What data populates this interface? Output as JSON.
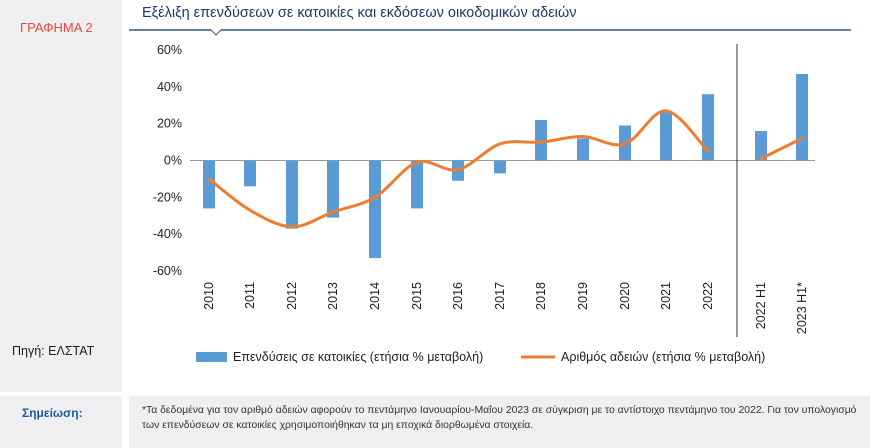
{
  "sidebar": {
    "graph_label": "ΓΡΑΦΗΜΑ 2",
    "source": "Πηγή: ΕΛΣΤΑΤ"
  },
  "note": {
    "label": "Σημείωση:",
    "text": "*Τα δεδομένα για τον αριθμό αδειών αφορούν το πεντάμηνο Ιανουαρίου-Μαΐου 2023 σε σύγκριση με το αντίστοιχο πεντάμηνο του 2022. Για τον υπολογισμό των επενδύσεων σε κατοικίες χρησιμοποιήθηκαν τα μη εποχικά διορθωμένα στοιχεία."
  },
  "colors": {
    "bar": "#5b9bd5",
    "line": "#ed7d31",
    "accent_red": "#e8483d",
    "title_blue": "#1c3a66"
  },
  "chart_data": {
    "type": "bar",
    "title": "Εξέλιξη επενδύσεων σε κατοικίες και εκδόσεων οικοδομικών αδειών",
    "categories": [
      "2010",
      "2011",
      "2012",
      "2013",
      "2014",
      "2015",
      "2016",
      "2017",
      "2018",
      "2019",
      "2020",
      "2021",
      "2022",
      "2022 H1",
      "2023 H1*"
    ],
    "ylim": [
      -60,
      60
    ],
    "yticks": [
      "60%",
      "40%",
      "20%",
      "0%",
      "-20%",
      "-40%",
      "-60%"
    ],
    "ytick_values": [
      60,
      40,
      20,
      0,
      -20,
      -40,
      -60
    ],
    "series": [
      {
        "name": "Επενδύσεις σε κατοικίες (ετήσια % μεταβολή)",
        "kind": "bar",
        "values": [
          -26,
          -14,
          -37,
          -31,
          -53,
          -26,
          -11,
          -7,
          22,
          12,
          19,
          27,
          36,
          16,
          47
        ]
      },
      {
        "name": "Αριθμός αδειών (ετήσια % μεταβολή)",
        "kind": "line",
        "values": [
          -10,
          -27,
          -36,
          -28,
          -20,
          -1,
          -5,
          9,
          10,
          13,
          9,
          27,
          5,
          1,
          12
        ]
      }
    ],
    "legend_position": "bottom"
  }
}
